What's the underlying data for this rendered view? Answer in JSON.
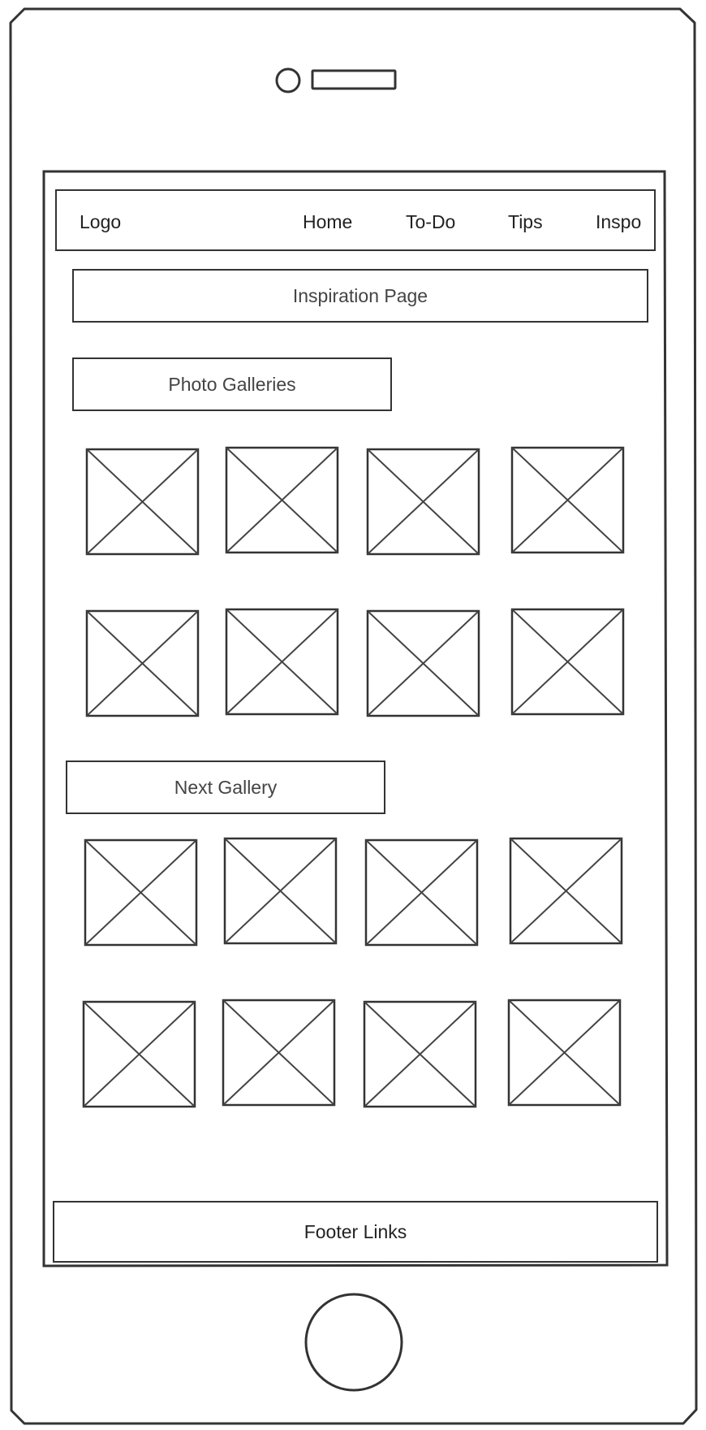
{
  "navbar": {
    "logo": "Logo",
    "items": [
      "Home",
      "To-Do",
      "Tips",
      "Inspo"
    ]
  },
  "page_title": "Inspiration Page",
  "gallery_1": {
    "title": "Photo Galleries",
    "image_count": 8
  },
  "gallery_2": {
    "title": "Next Gallery",
    "image_count": 8
  },
  "footer": {
    "label": "Footer Links"
  },
  "colors": {
    "stroke": "#333333",
    "background": "#ffffff"
  }
}
